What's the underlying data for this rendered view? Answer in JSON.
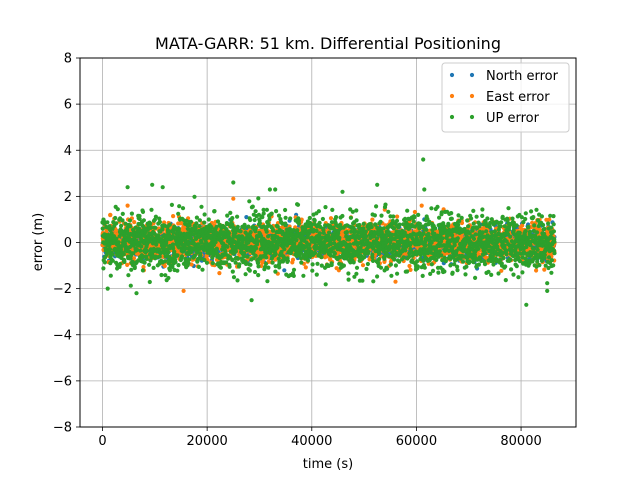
{
  "chart_data": {
    "type": "scatter",
    "title": "MATA-GARR: 51 km. Differential Positioning",
    "xlabel": "time (s)",
    "ylabel": "error (m)",
    "xlim": [
      -4300,
      90500
    ],
    "ylim": [
      -8,
      8
    ],
    "xticks": [
      0,
      20000,
      40000,
      60000,
      80000
    ],
    "yticks": [
      -8,
      -6,
      -4,
      -2,
      0,
      2,
      4,
      6,
      8
    ],
    "grid": true,
    "legend_position": "top-right",
    "x_range": [
      0,
      86400
    ],
    "series": [
      {
        "name": "North error",
        "color": "#1f77b4",
        "spread_std": 0.3,
        "notable_points": [
          [
            27500,
            1.1
          ],
          [
            37000,
            1.2
          ],
          [
            52000,
            -0.7
          ],
          [
            61500,
            1.0
          ]
        ]
      },
      {
        "name": "East error",
        "color": "#ff7f0e",
        "spread_std": 0.4,
        "notable_points": [
          [
            1500,
            1.2
          ],
          [
            4800,
            1.6
          ],
          [
            15500,
            -2.1
          ],
          [
            25000,
            1.9
          ],
          [
            56000,
            -1.7
          ],
          [
            61000,
            1.6
          ]
        ]
      },
      {
        "name": "UP error",
        "color": "#2ca02c",
        "spread_std": 0.6,
        "notable_points": [
          [
            4800,
            2.4
          ],
          [
            9500,
            2.5
          ],
          [
            11500,
            2.4
          ],
          [
            25000,
            2.6
          ],
          [
            28500,
            -2.5
          ],
          [
            32000,
            2.3
          ],
          [
            33000,
            2.3
          ],
          [
            52500,
            2.5
          ],
          [
            61300,
            3.6
          ],
          [
            61500,
            2.3
          ],
          [
            81000,
            -2.7
          ],
          [
            85000,
            -2.1
          ],
          [
            1000,
            -2.0
          ],
          [
            6500,
            -2.2
          ]
        ]
      }
    ]
  }
}
